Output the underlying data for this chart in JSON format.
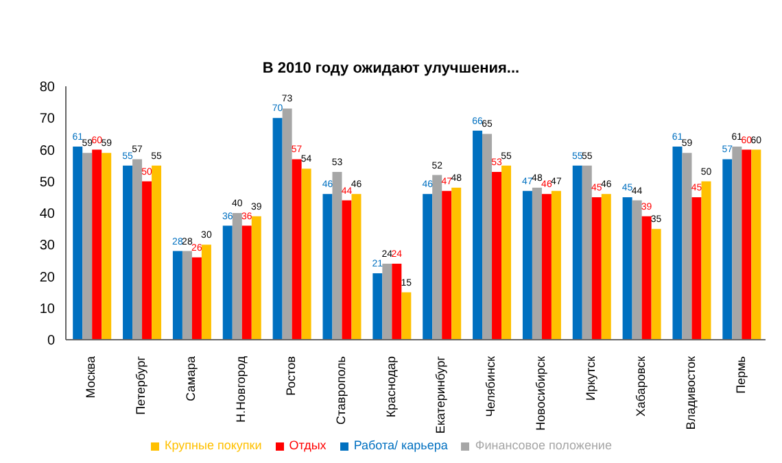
{
  "chart_data": {
    "type": "bar",
    "title": "В 2010 году ожидают улучшения...",
    "categories": [
      "Москва",
      "Петербург",
      "Самара",
      "Н.Новгород",
      "Ростов",
      "Ставрополь",
      "Краснодар",
      "Екатеринбург",
      "Челябинск",
      "Новосибирск",
      "Иркутск",
      "Хабаровск",
      "Владивосток",
      "Пермь"
    ],
    "series": [
      {
        "name": "Работа/ карьера",
        "color": "#0070c0",
        "values": [
          61,
          55,
          28,
          36,
          70,
          46,
          21,
          46,
          66,
          47,
          55,
          45,
          61,
          57
        ]
      },
      {
        "name": "Финансовое положение",
        "color": "#a6a6a6",
        "values": [
          59,
          57,
          28,
          40,
          73,
          53,
          24,
          52,
          65,
          48,
          55,
          44,
          59,
          61
        ]
      },
      {
        "name": "Отдых",
        "color": "#ff0000",
        "values": [
          60,
          50,
          26,
          36,
          57,
          44,
          24,
          47,
          53,
          46,
          45,
          39,
          45,
          60
        ]
      },
      {
        "name": "Крупные покупки",
        "color": "#ffc000",
        "values": [
          59,
          55,
          30,
          39,
          54,
          46,
          15,
          48,
          55,
          47,
          46,
          35,
          50,
          60
        ]
      }
    ],
    "ylim": [
      0,
      80
    ],
    "yticks": [
      0,
      10,
      20,
      30,
      40,
      50,
      60,
      70,
      80
    ],
    "grid": false,
    "legend": "bottom",
    "data_labels": true
  }
}
